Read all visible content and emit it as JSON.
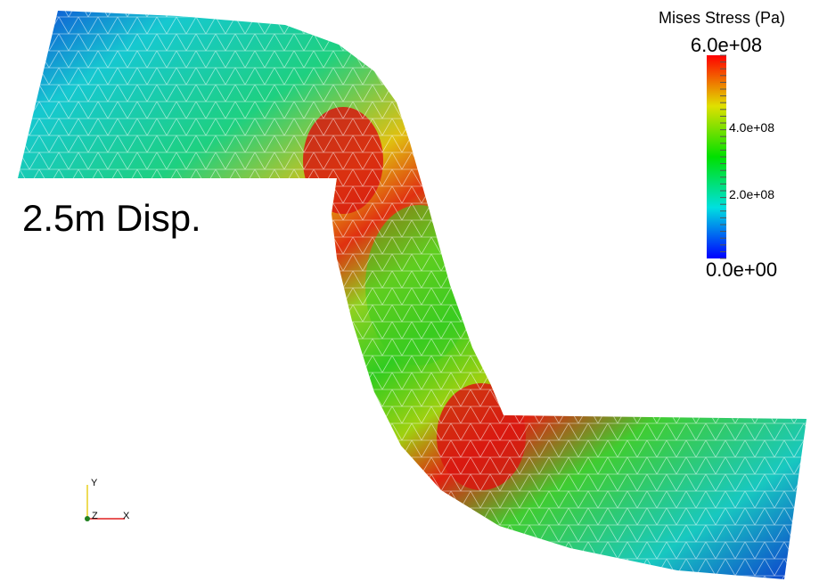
{
  "legend": {
    "title": "Mises Stress (Pa)",
    "labels": [
      "6.0e+08",
      "4.0e+08",
      "2.0e+08",
      "0.0e+00"
    ]
  },
  "annotation": "2.5m Disp.",
  "axes_triad": {
    "y": "Y",
    "z": "Z",
    "x": "X"
  }
}
